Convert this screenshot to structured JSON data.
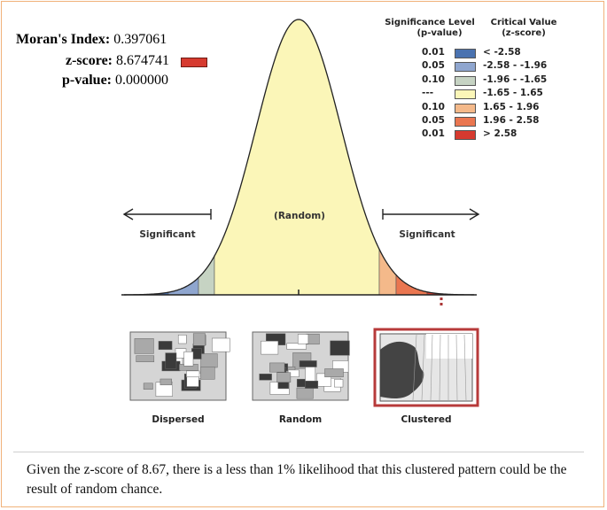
{
  "stats": {
    "moran_label": "Moran's Index:",
    "moran_value": "0.397061",
    "z_label": "z-score:",
    "z_value": "8.674741",
    "p_label": "p-value:",
    "p_value": "0.000000"
  },
  "legend": {
    "col1_line1": "Significance Level",
    "col1_line2": "(p-value)",
    "col2_line1": "Critical Value",
    "col2_line2": "(z-score)",
    "rows": [
      {
        "p": "0.01",
        "z": "< -2.58",
        "color": "#4a72b0"
      },
      {
        "p": "0.05",
        "z": "-2.58 - -1.96",
        "color": "#8fa6cf"
      },
      {
        "p": "0.10",
        "z": "-1.96 - -1.65",
        "color": "#c6d3c3"
      },
      {
        "p": "---",
        "z": "-1.65 - 1.65",
        "color": "#fbf6b8"
      },
      {
        "p": "0.10",
        "z": "1.65 - 1.96",
        "color": "#f4b98a"
      },
      {
        "p": "0.05",
        "z": "1.96 - 2.58",
        "color": "#ea7650"
      },
      {
        "p": "0.01",
        "z": "> 2.58",
        "color": "#d63a2f"
      }
    ]
  },
  "curve": {
    "center_label": "(Random)",
    "left_label": "Significant",
    "right_label": "Significant"
  },
  "maps": {
    "dispersed": "Dispersed",
    "random": "Random",
    "clustered": "Clustered"
  },
  "caption": "Given the z-score of 8.67, there is a less than 1% likelihood that this clustered pattern could be the result of random chance."
}
